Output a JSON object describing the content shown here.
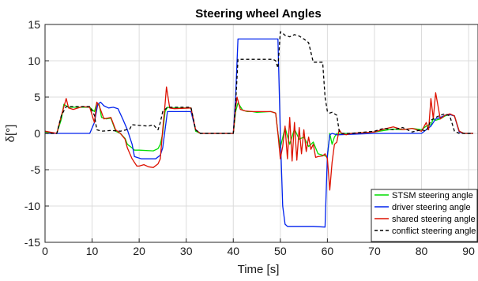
{
  "chart_data": {
    "type": "line",
    "title": "Steering  wheel Angles",
    "xlabel": "Time [s]",
    "ylabel": "δ[°]",
    "xlim": [
      0,
      92
    ],
    "ylim": [
      -15,
      15
    ],
    "xticks": [
      0,
      10,
      20,
      30,
      40,
      50,
      60,
      70,
      80,
      90
    ],
    "yticks": [
      -15,
      -10,
      -5,
      0,
      5,
      10,
      15
    ],
    "grid": true,
    "legend_position": "bottom-right",
    "series": [
      {
        "name": "STSM steering angle",
        "color": "#00dd00",
        "dash": "solid",
        "x": [
          0,
          2.5,
          3.5,
          4,
          5,
          9.5,
          10.5,
          11,
          11.5,
          12,
          13,
          14,
          15,
          16,
          17,
          17.5,
          18.5,
          19,
          20,
          23,
          24,
          24.5,
          25,
          25.5,
          26,
          27,
          31,
          32,
          33,
          40,
          40.5,
          41,
          42,
          43,
          44,
          45,
          48,
          49,
          49.5,
          50,
          51,
          52,
          53,
          54,
          55,
          56,
          57,
          58,
          59,
          60,
          60.5,
          61,
          61.5,
          62,
          63,
          65,
          70,
          72,
          74,
          76,
          78,
          80,
          81,
          82,
          82.5,
          83,
          84,
          85,
          86,
          87,
          88,
          89,
          90,
          91
        ],
        "y": [
          0.2,
          0,
          2,
          4,
          3.6,
          3.6,
          3,
          4.2,
          4,
          2.2,
          2,
          2.1,
          0.3,
          0,
          -0.7,
          -1.5,
          -2,
          -2.3,
          -2.3,
          -2.4,
          -2.1,
          -1.5,
          0,
          3,
          3.6,
          3.5,
          3.5,
          0.3,
          0,
          0,
          3,
          4.2,
          3.2,
          3,
          3,
          2.9,
          3,
          2.8,
          0,
          -2,
          0.8,
          -1.5,
          0.6,
          -0.8,
          -0.5,
          -1.8,
          -1.2,
          -2.8,
          -3,
          -3.2,
          0,
          -1.5,
          -0.5,
          0,
          0,
          0,
          0.2,
          0.4,
          0.6,
          0.5,
          0.7,
          0.5,
          1,
          1.2,
          2,
          1.8,
          2,
          2.4,
          2.6,
          2.4,
          0.3,
          0,
          0,
          0
        ]
      },
      {
        "name": "driver steering angle",
        "color": "#0022ee",
        "dash": "solid",
        "x": [
          0,
          9.5,
          10.5,
          11.2,
          11.8,
          12.5,
          13.5,
          14.5,
          15.5,
          16.5,
          17.5,
          18.5,
          19,
          20.5,
          23.5,
          24.5,
          25,
          25.5,
          26,
          31,
          32,
          33,
          40,
          40.5,
          41,
          48.5,
          49.5,
          50,
          50.5,
          51,
          51.5,
          57,
          59.5,
          60,
          60.5,
          61,
          62,
          70,
          80,
          81,
          82,
          83,
          84,
          85,
          86,
          87,
          88,
          89,
          90,
          91
        ],
        "y": [
          0,
          0,
          1.5,
          4,
          4.3,
          3.8,
          3.5,
          3.6,
          3.4,
          2,
          0.5,
          -1.5,
          -3.2,
          -3.5,
          -3.5,
          -3,
          -2,
          0.5,
          3,
          3,
          0.5,
          0,
          0,
          5,
          13,
          13,
          13,
          0,
          -10,
          -12.5,
          -12.8,
          -12.8,
          -12.9,
          -3,
          -0.2,
          0,
          -0.2,
          0,
          0,
          0.5,
          1,
          2,
          2.2,
          2.5,
          2.6,
          2.4,
          0.2,
          0,
          0,
          0
        ]
      },
      {
        "name": "shared steering angle",
        "color": "#dd1100",
        "dash": "solid",
        "x": [
          0,
          2.5,
          3.5,
          4.5,
          5,
          6,
          8,
          9.5,
          10,
          10.5,
          11,
          11.5,
          12.5,
          14,
          15,
          16,
          17,
          17.5,
          18.5,
          19.5,
          20,
          21,
          22,
          23,
          24,
          24.5,
          25,
          25.5,
          25.8,
          26.5,
          27.5,
          31,
          32,
          33,
          40,
          40.5,
          40.8,
          41.5,
          42.5,
          44,
          46,
          48,
          49,
          49.5,
          50,
          50.5,
          51,
          51.5,
          52,
          52.5,
          53,
          53.5,
          54,
          54.5,
          55,
          55.5,
          56,
          56.5,
          57,
          57.5,
          58,
          59,
          59.5,
          60,
          60.5,
          61,
          61.5,
          62,
          62.5,
          63,
          64,
          65,
          70,
          72,
          74,
          76,
          78,
          80,
          81,
          81.5,
          82,
          82.5,
          83,
          84,
          85,
          86,
          87,
          88,
          89,
          90,
          91
        ],
        "y": [
          0.3,
          0,
          2.5,
          4.8,
          3.5,
          3.3,
          3.7,
          3.6,
          2.5,
          1.5,
          4.3,
          3.8,
          2,
          2.2,
          0.5,
          0,
          -0.8,
          -2,
          -3.5,
          -4.5,
          -4.5,
          -4.3,
          -4.6,
          -4.7,
          -4.2,
          -3.5,
          0.5,
          4,
          6.4,
          3.5,
          3.4,
          3.5,
          0.5,
          0,
          0,
          3.5,
          5,
          3.3,
          3.1,
          3,
          3,
          3,
          2.8,
          0,
          -3.5,
          -1.8,
          1,
          -3.5,
          2.2,
          -3.8,
          1.5,
          -3.7,
          0.8,
          -2.8,
          0.5,
          -2.5,
          -0.5,
          -2.2,
          -1.5,
          -3.3,
          -3.2,
          -3.1,
          -2.8,
          -3.5,
          -7.8,
          -4,
          -1.5,
          -1.2,
          0.5,
          0,
          -0.2,
          0,
          0.2,
          0.6,
          0.9,
          0.5,
          0.7,
          0.3,
          1.5,
          0.5,
          4.8,
          2,
          5.6,
          2,
          2.5,
          2.7,
          2.4,
          0.3,
          0,
          0,
          0
        ]
      },
      {
        "name": "conflict steering angle",
        "color": "#000000",
        "dash": "dashed",
        "x": [
          0,
          2.5,
          3.5,
          4.5,
          9.5,
          10.5,
          11,
          12,
          14,
          16,
          18,
          18.5,
          22,
          23,
          24,
          24.5,
          25,
          26,
          31,
          32,
          33,
          40,
          40.5,
          41,
          42,
          48.5,
          49,
          49.5,
          50,
          50.5,
          51,
          52,
          53,
          54,
          55,
          56,
          57,
          59,
          59.5,
          60,
          60.5,
          61,
          62,
          62.5,
          63,
          65,
          70,
          72,
          74,
          76,
          78,
          80,
          81,
          82,
          83,
          84,
          85,
          86,
          87,
          88,
          89,
          90,
          91
        ],
        "y": [
          0,
          0,
          2.5,
          3.7,
          3.7,
          2.5,
          0.5,
          0.3,
          0.4,
          0.3,
          0.6,
          1.2,
          1,
          1.2,
          0.5,
          1.5,
          3,
          3.6,
          3.6,
          0.5,
          0,
          0,
          4,
          10.2,
          10.2,
          10.2,
          10,
          9,
          14,
          13.8,
          13.5,
          13.3,
          13.6,
          13.4,
          13,
          12.5,
          9.8,
          9.8,
          5,
          3,
          2.8,
          2.9,
          2.5,
          0.3,
          0,
          0,
          0.3,
          0.7,
          0.5,
          0.8,
          0.2,
          0.5,
          0.3,
          1.8,
          2.2,
          2.5,
          2.7,
          2.4,
          0.3,
          0,
          0,
          0,
          0
        ]
      }
    ]
  }
}
